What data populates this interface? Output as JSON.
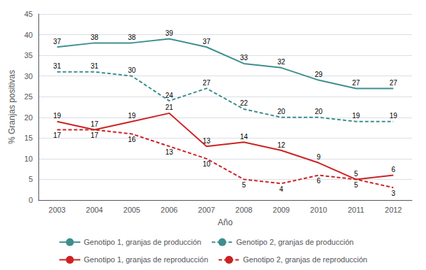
{
  "chart_data": {
    "type": "line",
    "categories": [
      "2003",
      "2004",
      "2005",
      "2006",
      "2007",
      "2008",
      "2009",
      "2010",
      "2011",
      "2012"
    ],
    "series": [
      {
        "name": "Genotipo 1, granjas de producción",
        "color": "#3d8e8e",
        "line_style": "solid",
        "values": [
          37,
          38,
          38,
          39,
          37,
          33,
          32,
          29,
          27,
          27
        ]
      },
      {
        "name": "Genotipo 2, granjas de producción",
        "color": "#3d8e8e",
        "line_style": "dashed",
        "values": [
          31,
          31,
          30,
          24,
          27,
          22,
          20,
          20,
          19,
          19
        ]
      },
      {
        "name": "Genotipo 1, granjas de reproducción",
        "color": "#cc2222",
        "line_style": "solid",
        "values": [
          19,
          17,
          19,
          21,
          13,
          14,
          12,
          9,
          5,
          6
        ]
      },
      {
        "name": "Genotipo 2, granjas de reproducción",
        "color": "#cc2222",
        "line_style": "dashed",
        "values": [
          17,
          17,
          16,
          13,
          10,
          5,
          4,
          6,
          5,
          3
        ]
      }
    ],
    "xlabel": "Año",
    "ylabel": "% Granjas positivas",
    "ylim": [
      0,
      45
    ],
    "yticks": [
      0,
      5,
      10,
      15,
      20,
      25,
      30,
      35,
      40,
      45
    ],
    "grid": true,
    "legend": "bottom",
    "data_labels": true
  }
}
